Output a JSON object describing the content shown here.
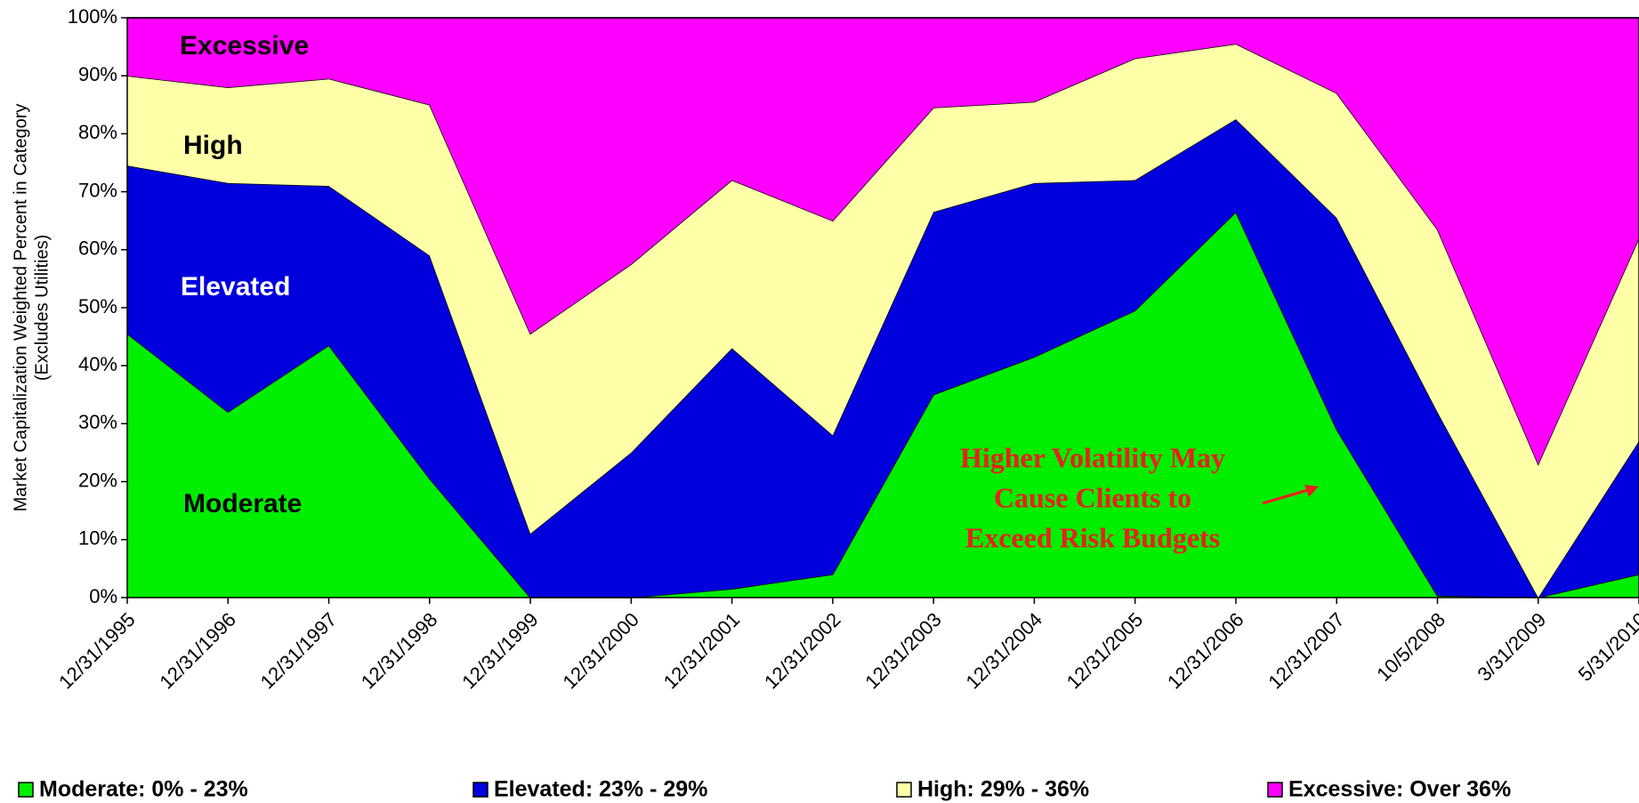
{
  "chart_data": {
    "type": "stacked_area_100",
    "y_label": [
      "Market Capitalization Weighted Percent in Category",
      "(Excludes Utilities)"
    ],
    "categories": [
      "12/31/1995",
      "12/31/1996",
      "12/31/1997",
      "12/31/1998",
      "12/31/1999",
      "12/31/2000",
      "12/31/2001",
      "12/31/2002",
      "12/31/2003",
      "12/31/2004",
      "12/31/2005",
      "12/31/2006",
      "12/31/2007",
      "10/5/2008",
      "3/31/2009",
      "5/31/2010"
    ],
    "series": [
      {
        "name": "Moderate: 0% - 23%",
        "color": "#00ee00",
        "values": [
          45.5,
          32,
          43.5,
          20.5,
          0,
          0,
          1.5,
          4,
          35,
          41.5,
          49.5,
          66.5,
          29,
          0.3,
          0,
          4
        ]
      },
      {
        "name": "Elevated: 23% - 29%",
        "color": "#0000dd",
        "values": [
          29,
          39.5,
          27.5,
          38.5,
          11,
          25,
          41.5,
          24,
          31.5,
          30,
          22.5,
          16,
          36.5,
          31.7,
          0,
          23
        ]
      },
      {
        "name": "High: 29% - 36%",
        "color": "#ffffa8",
        "values": [
          15.5,
          16.5,
          18.5,
          26,
          34.5,
          32.5,
          29,
          37,
          18,
          14,
          21,
          13,
          21.5,
          31.5,
          23,
          35
        ]
      },
      {
        "name": "Excessive: Over 36%",
        "color": "#ff00ff",
        "values": [
          10,
          12,
          10.5,
          15,
          54.5,
          42.5,
          28,
          35,
          15.5,
          14.5,
          7,
          4.5,
          13,
          36.5,
          77,
          38
        ]
      }
    ],
    "ylim": [
      0,
      100
    ],
    "yticks": [
      {
        "value": 0,
        "label": "0%"
      },
      {
        "value": 10,
        "label": "10%"
      },
      {
        "value": 20,
        "label": "20%"
      },
      {
        "value": 30,
        "label": "30%"
      },
      {
        "value": 40,
        "label": "40%"
      },
      {
        "value": 50,
        "label": "50%"
      },
      {
        "value": 60,
        "label": "60%"
      },
      {
        "value": 70,
        "label": "70%"
      },
      {
        "value": 80,
        "label": "80%"
      },
      {
        "value": 90,
        "label": "90%"
      },
      {
        "value": 100,
        "label": "100%"
      }
    ],
    "annotations": [
      {
        "text": "Excessive",
        "color": "#000000"
      },
      {
        "text": "High",
        "color": "#000000"
      },
      {
        "text": "Elevated",
        "color": "#ffffff"
      },
      {
        "text": "Moderate",
        "color": "#000000"
      }
    ],
    "callout": [
      "Higher Volatility May",
      "Cause Clients to",
      "Exceed Risk Budgets"
    ]
  }
}
